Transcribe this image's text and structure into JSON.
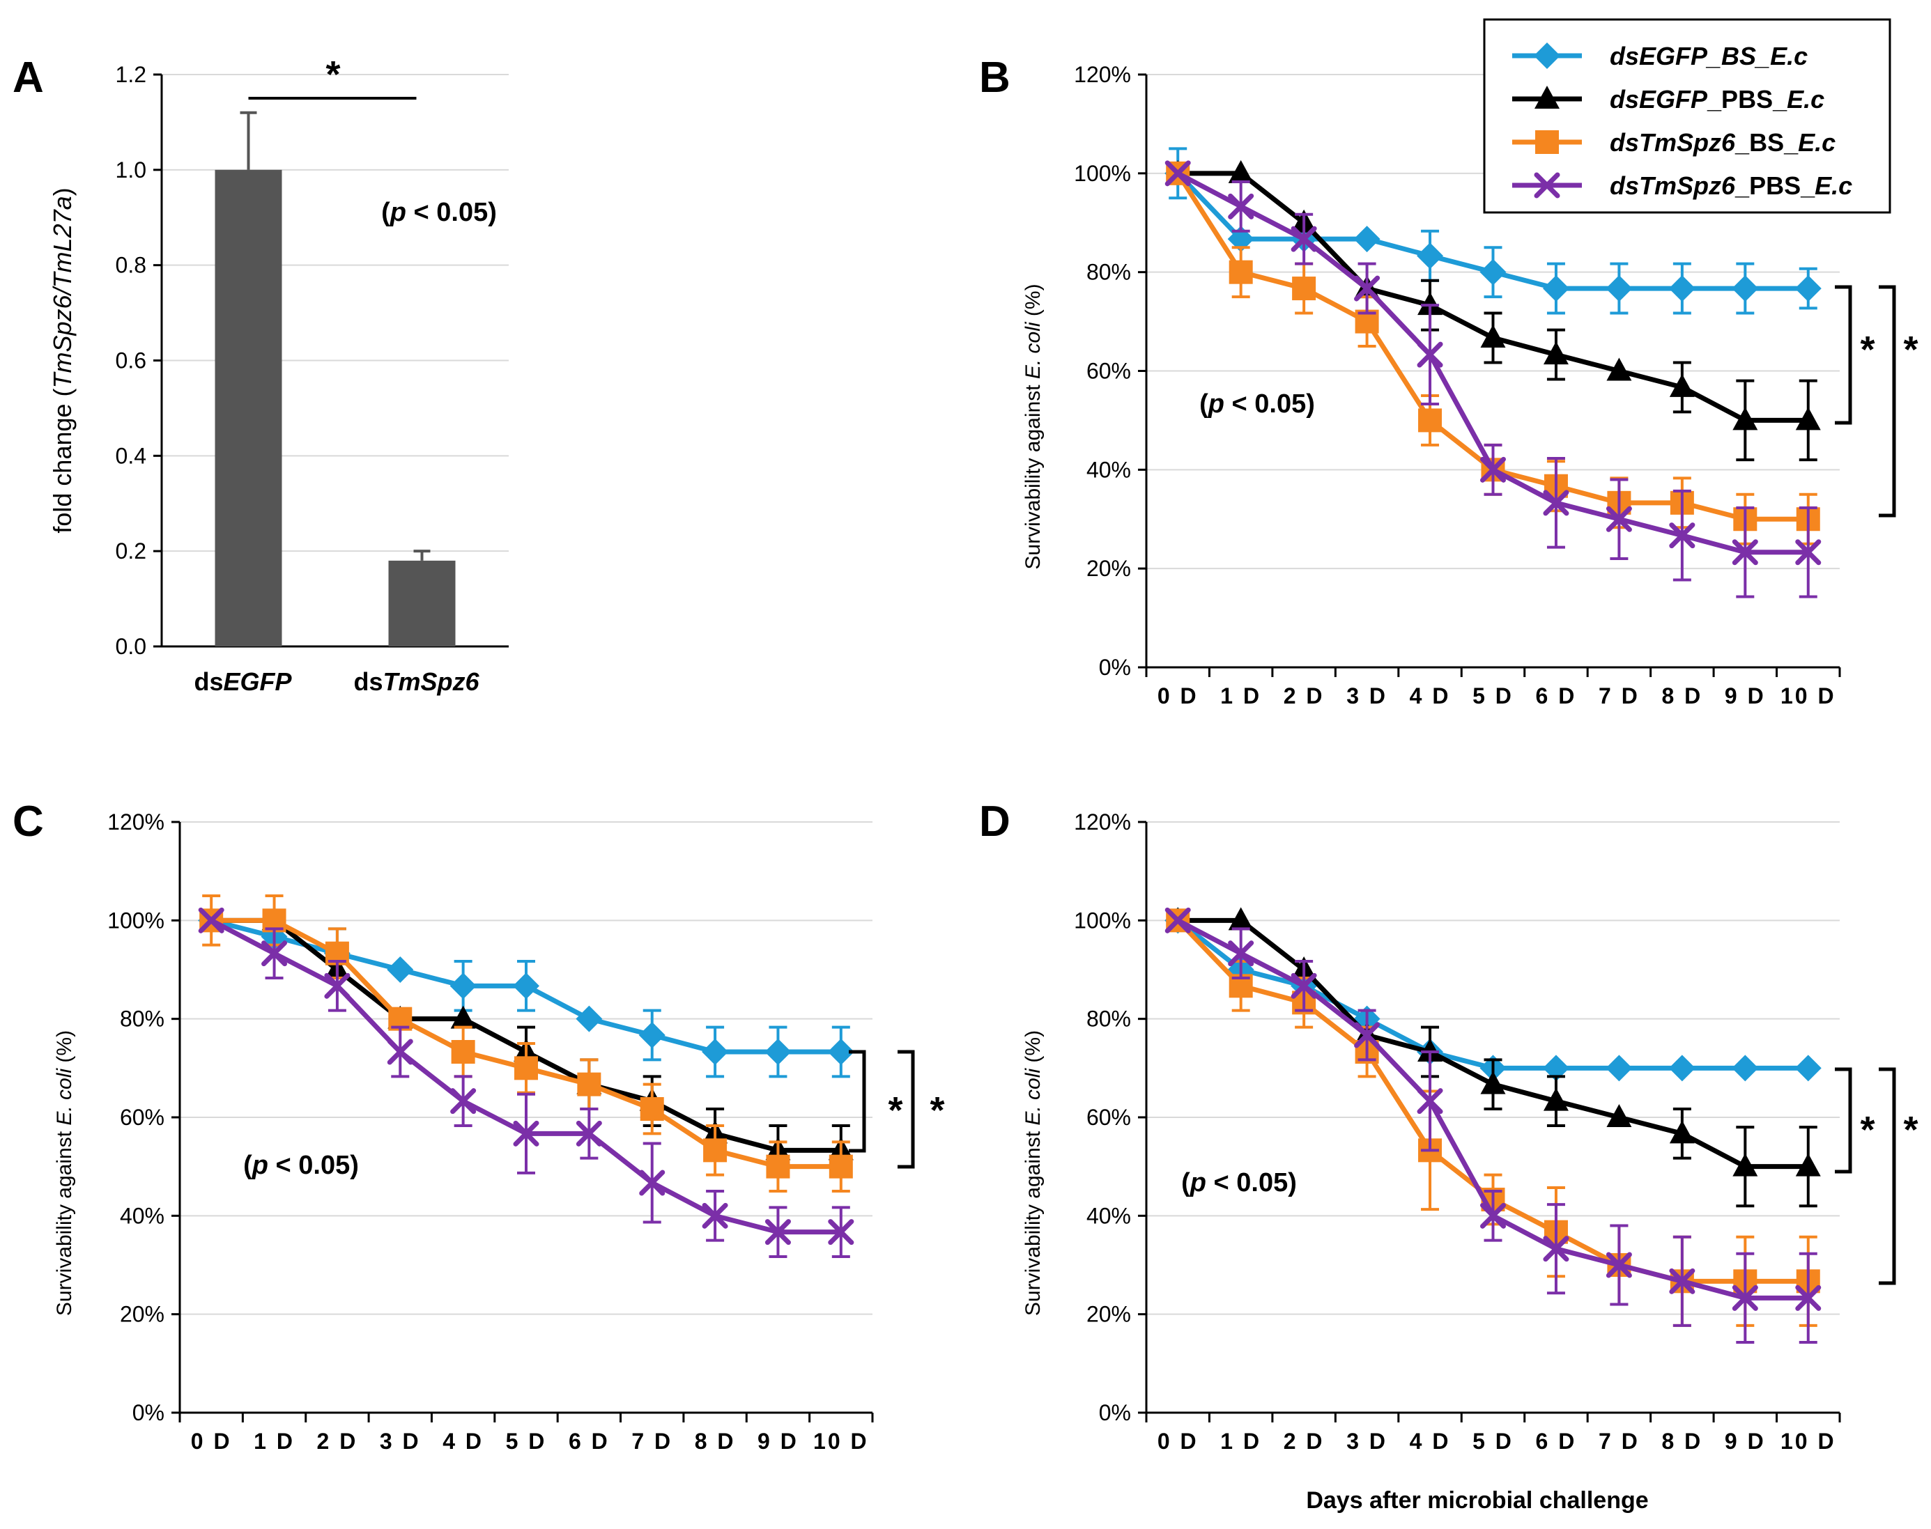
{
  "figure": {
    "xlabel": "Days after microbial challenge",
    "series_colors": {
      "dsEGFP_BS_E.c": "#1e9bd7",
      "dsEGFP_PBS_E.c": "#000000",
      "dsTmSpz6_BS_E.c": "#f5861f",
      "dsTmSpz6_PBS_E.c": "#7b2fa8"
    },
    "bar_color": "#555555"
  },
  "legend": {
    "items": [
      {
        "key": "dsEGFP_BS_E.c",
        "parts": [
          {
            "t": "dsEGFP_BS_E.c",
            "i": true
          }
        ],
        "marker": "diamond"
      },
      {
        "key": "dsEGFP_PBS_E.c",
        "parts": [
          {
            "t": "dsEGFP",
            "i": true
          },
          {
            "t": "_PBS_",
            "i": false
          },
          {
            "t": "E.c",
            "i": true
          }
        ],
        "marker": "triangle"
      },
      {
        "key": "dsTmSpz6_BS_E.c",
        "parts": [
          {
            "t": "dsTmSpz6",
            "i": true
          },
          {
            "t": "_BS_",
            "i": false
          },
          {
            "t": "E.c",
            "i": true
          }
        ],
        "marker": "square"
      },
      {
        "key": "dsTmSpz6_PBS_E.c",
        "parts": [
          {
            "t": "dsTmSpz6",
            "i": true
          },
          {
            "t": "_PBS_",
            "i": false
          },
          {
            "t": "E.c",
            "i": true
          }
        ],
        "marker": "x"
      }
    ]
  },
  "chart_data": [
    {
      "panel": "A",
      "type": "bar",
      "ylabel_parts": [
        {
          "t": "fold change (",
          "i": false
        },
        {
          "t": "TmSpz6/TmL27a",
          "i": true
        },
        {
          "t": ")",
          "i": false
        }
      ],
      "categories": [
        [
          {
            "t": "ds",
            "i": false
          },
          {
            "t": "EGFP",
            "i": true
          }
        ],
        [
          {
            "t": "ds",
            "i": false
          },
          {
            "t": "TmSpz6",
            "i": true
          }
        ]
      ],
      "values": [
        1.0,
        0.18
      ],
      "errors": [
        0.12,
        0.02
      ],
      "ylim": [
        0,
        1.2
      ],
      "yticks": [
        "0.0",
        "0.2",
        "0.4",
        "0.6",
        "0.8",
        "1.0",
        "1.2"
      ],
      "significance": "*",
      "pvalue": [
        {
          "t": "(",
          "i": false
        },
        {
          "t": "p",
          "i": true
        },
        {
          "t": " < 0.05)",
          "i": false
        }
      ]
    },
    {
      "panel": "B",
      "type": "line",
      "ylabel_parts": [
        {
          "t": "Survivability against ",
          "i": false
        },
        {
          "t": "E. coli",
          "i": true
        },
        {
          "t": " (%)",
          "i": false
        }
      ],
      "categories": [
        "0 D",
        "1 D",
        "2 D",
        "3 D",
        "4 D",
        "5 D",
        "6 D",
        "7 D",
        "8 D",
        "9 D",
        "10 D"
      ],
      "yticks": [
        "0%",
        "20%",
        "40%",
        "60%",
        "80%",
        "100%",
        "120%"
      ],
      "ylim": [
        0,
        120
      ],
      "series": [
        {
          "name": "dsEGFP_BS_E.c",
          "values": [
            100,
            86.7,
            86.7,
            86.7,
            83.3,
            80,
            76.7,
            76.7,
            76.7,
            76.7,
            76.7
          ],
          "errors": [
            5,
            0,
            0,
            0,
            5,
            5,
            5,
            5,
            5,
            5,
            4
          ]
        },
        {
          "name": "dsEGFP_PBS_E.c",
          "values": [
            100,
            100,
            90,
            76.7,
            73.3,
            66.7,
            63.3,
            60,
            56.7,
            50,
            50
          ],
          "errors": [
            0,
            0,
            0,
            0,
            5,
            5,
            5,
            0,
            5,
            8,
            8
          ]
        },
        {
          "name": "dsTmSpz6_BS_E.c",
          "values": [
            100,
            80,
            76.7,
            70,
            50,
            40,
            36.7,
            33.3,
            33.3,
            30,
            30
          ],
          "errors": [
            0,
            5,
            5,
            5,
            5,
            5,
            5,
            5,
            5,
            5,
            5
          ]
        },
        {
          "name": "dsTmSpz6_PBS_E.c",
          "values": [
            100,
            93.3,
            86.7,
            76.7,
            63.3,
            40,
            33.3,
            30,
            26.7,
            23.3,
            23.3
          ],
          "errors": [
            0,
            5,
            5,
            5,
            10,
            5,
            9,
            8,
            9,
            9,
            9
          ]
        }
      ],
      "significance": [
        "*",
        "*"
      ],
      "pvalue": [
        {
          "t": "(",
          "i": false
        },
        {
          "t": "p",
          "i": true
        },
        {
          "t": " < 0.05)",
          "i": false
        }
      ]
    },
    {
      "panel": "C",
      "type": "line",
      "ylabel_parts": [
        {
          "t": "Survivability against ",
          "i": false
        },
        {
          "t": "E. coli",
          "i": true
        },
        {
          "t": " (%)",
          "i": false
        }
      ],
      "categories": [
        "0 D",
        "1 D",
        "2 D",
        "3 D",
        "4 D",
        "5 D",
        "6 D",
        "7 D",
        "8 D",
        "9 D",
        "10 D"
      ],
      "yticks": [
        "0%",
        "20%",
        "40%",
        "60%",
        "80%",
        "100%",
        "120%"
      ],
      "ylim": [
        0,
        120
      ],
      "series": [
        {
          "name": "dsEGFP_BS_E.c",
          "values": [
            100,
            96.7,
            93.3,
            90,
            86.7,
            86.7,
            80,
            76.7,
            73.3,
            73.3,
            73.3
          ],
          "errors": [
            0,
            0,
            5,
            0,
            5,
            5,
            0,
            5,
            5,
            5,
            5
          ]
        },
        {
          "name": "dsEGFP_PBS_E.c",
          "values": [
            100,
            100,
            90,
            80,
            80,
            73.3,
            66.7,
            63.3,
            56.7,
            53.3,
            53.3
          ],
          "errors": [
            0,
            0,
            0,
            0,
            0,
            5,
            5,
            5,
            5,
            5,
            5
          ]
        },
        {
          "name": "dsTmSpz6_BS_E.c",
          "values": [
            100,
            100,
            93.3,
            80,
            73.3,
            70,
            66.7,
            61.7,
            53.3,
            50,
            50
          ],
          "errors": [
            5,
            5,
            5,
            0,
            5,
            5,
            5,
            5,
            5,
            5,
            5
          ]
        },
        {
          "name": "dsTmSpz6_PBS_E.c",
          "values": [
            100,
            93.3,
            86.7,
            73.3,
            63.3,
            56.7,
            56.7,
            46.7,
            40,
            36.7,
            36.7
          ],
          "errors": [
            0,
            5,
            5,
            5,
            5,
            8,
            5,
            8,
            5,
            5,
            5
          ]
        }
      ],
      "significance": [
        "*",
        "*"
      ],
      "pvalue": [
        {
          "t": "(",
          "i": false
        },
        {
          "t": "p",
          "i": true
        },
        {
          "t": " < 0.05)",
          "i": false
        }
      ]
    },
    {
      "panel": "D",
      "type": "line",
      "ylabel_parts": [
        {
          "t": "Survivability against ",
          "i": false
        },
        {
          "t": "E. coli",
          "i": true
        },
        {
          "t": " (%)",
          "i": false
        }
      ],
      "categories": [
        "0 D",
        "1 D",
        "2 D",
        "3 D",
        "4 D",
        "5 D",
        "6 D",
        "7 D",
        "8 D",
        "9 D",
        "10 D"
      ],
      "yticks": [
        "0%",
        "20%",
        "40%",
        "60%",
        "80%",
        "100%",
        "120%"
      ],
      "ylim": [
        0,
        120
      ],
      "series": [
        {
          "name": "dsEGFP_BS_E.c",
          "values": [
            100,
            90,
            86.7,
            80,
            73.3,
            70,
            70,
            70,
            70,
            70,
            70
          ],
          "errors": [
            0,
            0,
            0,
            0,
            0,
            0,
            0,
            0,
            0,
            0,
            0
          ]
        },
        {
          "name": "dsEGFP_PBS_E.c",
          "values": [
            100,
            100,
            90,
            76.7,
            73.3,
            66.7,
            63.3,
            60,
            56.7,
            50,
            50
          ],
          "errors": [
            0,
            0,
            0,
            0,
            5,
            5,
            5,
            0,
            5,
            8,
            8
          ]
        },
        {
          "name": "dsTmSpz6_BS_E.c",
          "values": [
            100,
            86.7,
            83.3,
            73.3,
            53.3,
            43.3,
            36.7,
            30,
            26.7,
            26.7,
            26.7
          ],
          "errors": [
            0,
            5,
            5,
            5,
            12,
            5,
            9,
            8,
            9,
            9,
            9
          ]
        },
        {
          "name": "dsTmSpz6_PBS_E.c",
          "values": [
            100,
            93.3,
            86.7,
            76.7,
            63.3,
            40,
            33.3,
            30,
            26.7,
            23.3,
            23.3
          ],
          "errors": [
            0,
            5,
            5,
            5,
            10,
            5,
            9,
            8,
            9,
            9,
            9
          ]
        }
      ],
      "significance": [
        "*",
        "*"
      ],
      "pvalue": [
        {
          "t": "(",
          "i": false
        },
        {
          "t": "p",
          "i": true
        },
        {
          "t": " < 0.05)",
          "i": false
        }
      ]
    }
  ]
}
